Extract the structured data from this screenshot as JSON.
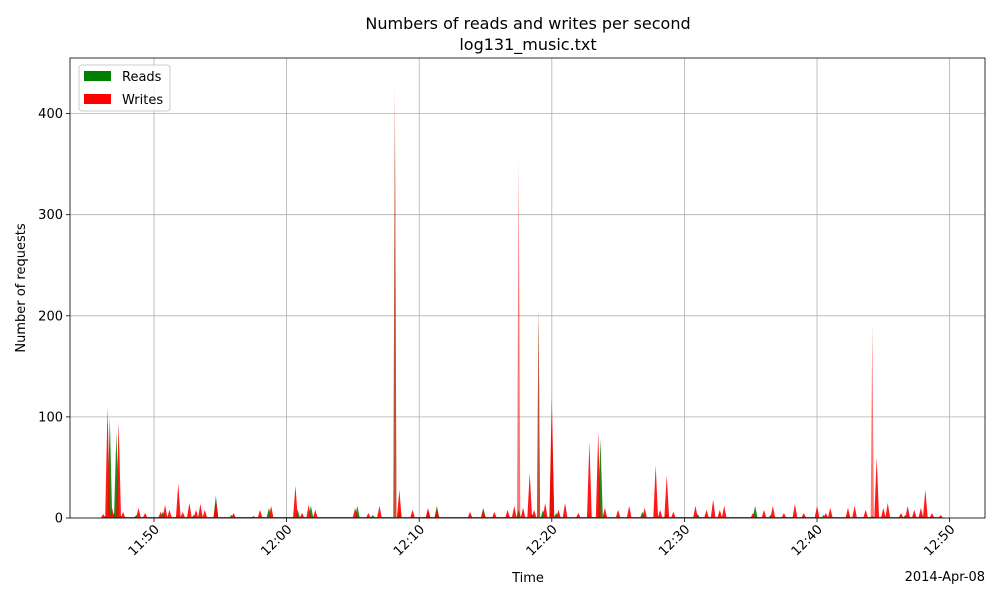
{
  "chart_data": {
    "type": "area",
    "title": "Numbers of reads and writes per second",
    "subtitle": "log131_music.txt",
    "xlabel": "Time",
    "ylabel": "Number of requests",
    "x_offset_label": "2014-Apr-08",
    "x_ticks": [
      "11:50",
      "12:00",
      "12:10",
      "12:20",
      "12:30",
      "12:40",
      "12:50"
    ],
    "y_ticks": [
      0,
      100,
      200,
      300,
      400
    ],
    "xlim": [
      "11:43:40",
      "12:52:40"
    ],
    "ylim": [
      0,
      455
    ],
    "grid": true,
    "legend_position": "top-left",
    "series": [
      {
        "name": "Reads",
        "color": "#008000",
        "points": [
          [
            "11:46:20",
            2
          ],
          [
            "11:46:40",
            100
          ],
          [
            "11:47:00",
            5
          ],
          [
            "11:47:10",
            85
          ],
          [
            "11:47:30",
            2
          ],
          [
            "11:48:40",
            3
          ],
          [
            "11:50:40",
            6
          ],
          [
            "11:51:50",
            4
          ],
          [
            "11:53:00",
            3
          ],
          [
            "11:54:40",
            22
          ],
          [
            "11:55:50",
            3
          ],
          [
            "11:57:30",
            2
          ],
          [
            "11:58:40",
            10
          ],
          [
            "12:00:50",
            8
          ],
          [
            "12:01:50",
            12
          ],
          [
            "12:05:20",
            12
          ],
          [
            "12:06:30",
            3
          ],
          [
            "12:08:10",
            410
          ],
          [
            "12:08:30",
            8
          ],
          [
            "12:10:40",
            8
          ],
          [
            "12:11:20",
            12
          ],
          [
            "12:14:50",
            10
          ],
          [
            "12:16:40",
            3
          ],
          [
            "12:17:30",
            8
          ],
          [
            "12:18:30",
            4
          ],
          [
            "12:19:00",
            205
          ],
          [
            "12:19:20",
            8
          ],
          [
            "12:20:00",
            100
          ],
          [
            "12:20:20",
            5
          ],
          [
            "12:22:50",
            4
          ],
          [
            "12:23:40",
            78
          ],
          [
            "12:24:00",
            3
          ],
          [
            "12:26:50",
            6
          ],
          [
            "12:28:40",
            5
          ],
          [
            "12:31:00",
            4
          ],
          [
            "12:35:20",
            12
          ],
          [
            "12:36:30",
            3
          ],
          [
            "12:38:20",
            2
          ],
          [
            "12:40:30",
            3
          ],
          [
            "12:42:20",
            3
          ],
          [
            "12:44:10",
            2
          ],
          [
            "12:46:40",
            3
          ],
          [
            "12:47:50",
            2
          ],
          [
            "12:49:20",
            1
          ]
        ]
      },
      {
        "name": "Writes",
        "color": "#ff0000",
        "points": [
          [
            "11:46:10",
            4
          ],
          [
            "11:46:30",
            110
          ],
          [
            "11:46:50",
            10
          ],
          [
            "11:47:20",
            95
          ],
          [
            "11:47:40",
            6
          ],
          [
            "11:48:50",
            10
          ],
          [
            "11:49:20",
            5
          ],
          [
            "11:50:30",
            6
          ],
          [
            "11:50:50",
            13
          ],
          [
            "11:51:10",
            8
          ],
          [
            "11:51:50",
            34
          ],
          [
            "11:52:10",
            6
          ],
          [
            "11:52:40",
            15
          ],
          [
            "11:53:10",
            8
          ],
          [
            "11:53:30",
            14
          ],
          [
            "11:53:50",
            8
          ],
          [
            "11:54:40",
            18
          ],
          [
            "11:56:00",
            5
          ],
          [
            "11:58:00",
            8
          ],
          [
            "11:58:50",
            12
          ],
          [
            "12:00:40",
            32
          ],
          [
            "12:01:10",
            5
          ],
          [
            "12:01:40",
            13
          ],
          [
            "12:02:10",
            8
          ],
          [
            "12:05:10",
            10
          ],
          [
            "12:06:10",
            5
          ],
          [
            "12:07:00",
            12
          ],
          [
            "12:08:10",
            430
          ],
          [
            "12:08:30",
            28
          ],
          [
            "12:09:30",
            8
          ],
          [
            "12:10:40",
            10
          ],
          [
            "12:11:20",
            8
          ],
          [
            "12:13:50",
            6
          ],
          [
            "12:14:50",
            8
          ],
          [
            "12:15:40",
            6
          ],
          [
            "12:16:40",
            8
          ],
          [
            "12:17:10",
            12
          ],
          [
            "12:17:30",
            355
          ],
          [
            "12:17:50",
            10
          ],
          [
            "12:18:20",
            45
          ],
          [
            "12:18:40",
            8
          ],
          [
            "12:19:00",
            210
          ],
          [
            "12:19:30",
            15
          ],
          [
            "12:20:00",
            120
          ],
          [
            "12:20:30",
            8
          ],
          [
            "12:21:00",
            15
          ],
          [
            "12:22:00",
            5
          ],
          [
            "12:22:50",
            75
          ],
          [
            "12:23:30",
            85
          ],
          [
            "12:24:00",
            10
          ],
          [
            "12:25:00",
            8
          ],
          [
            "12:25:50",
            12
          ],
          [
            "12:27:00",
            10
          ],
          [
            "12:27:50",
            52
          ],
          [
            "12:28:10",
            8
          ],
          [
            "12:28:40",
            42
          ],
          [
            "12:29:10",
            6
          ],
          [
            "12:30:50",
            12
          ],
          [
            "12:31:40",
            8
          ],
          [
            "12:32:10",
            18
          ],
          [
            "12:32:40",
            8
          ],
          [
            "12:33:00",
            12
          ],
          [
            "12:35:10",
            5
          ],
          [
            "12:36:00",
            8
          ],
          [
            "12:36:40",
            12
          ],
          [
            "12:37:30",
            5
          ],
          [
            "12:38:20",
            14
          ],
          [
            "12:39:00",
            5
          ],
          [
            "12:40:00",
            12
          ],
          [
            "12:40:40",
            5
          ],
          [
            "12:41:00",
            10
          ],
          [
            "12:42:20",
            10
          ],
          [
            "12:42:50",
            12
          ],
          [
            "12:43:40",
            8
          ],
          [
            "12:44:10",
            190
          ],
          [
            "12:44:30",
            60
          ],
          [
            "12:45:00",
            10
          ],
          [
            "12:45:20",
            15
          ],
          [
            "12:46:20",
            5
          ],
          [
            "12:46:50",
            12
          ],
          [
            "12:47:20",
            8
          ],
          [
            "12:47:50",
            10
          ],
          [
            "12:48:10",
            28
          ],
          [
            "12:48:40",
            5
          ],
          [
            "12:49:20",
            3
          ]
        ]
      }
    ]
  }
}
